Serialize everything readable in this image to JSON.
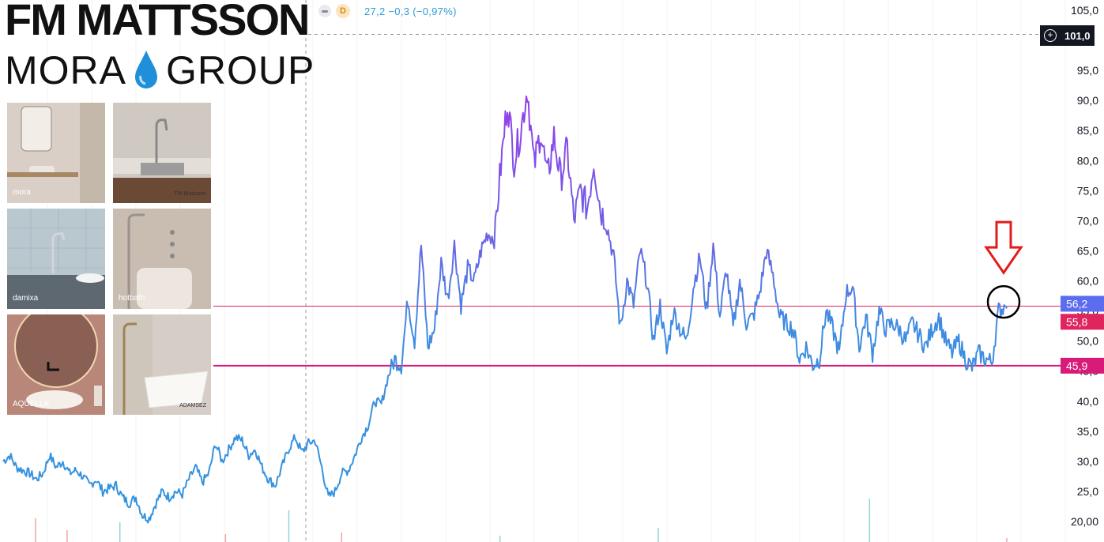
{
  "logo": {
    "line1": "FM MATTSSON",
    "line2_left": "MORA",
    "line2_right": "GROUP",
    "drop_icon": "water-drop-icon",
    "drop_color": "#1e8fd8"
  },
  "brand_tiles": [
    {
      "label": "mora",
      "bg": "#d9cfc6"
    },
    {
      "label": "FM Mattsson",
      "bg": "#cfc9c2"
    },
    {
      "label": "damixa",
      "bg": "#b9c7cf"
    },
    {
      "label": "hotbath",
      "bg": "#c9bdb2"
    },
    {
      "label": "AQUELLA",
      "bg": "#b9877a"
    },
    {
      "label": "ADAMSEZ",
      "bg": "#d6cec6"
    }
  ],
  "header": {
    "interval_badge": "D",
    "quote": "27,2  −0,3 (−0,97%)",
    "quote_color": "#2f9bd6"
  },
  "crosshair": {
    "price_label": "101,0"
  },
  "chart_data": {
    "type": "line",
    "ylim": [
      17.5,
      106.0
    ],
    "y_ticks": [
      "20,00",
      "25,0",
      "30,0",
      "35,0",
      "40,0",
      "45,0",
      "50,0",
      "55,0",
      "60,0",
      "65,0",
      "70,0",
      "75,0",
      "80,0",
      "85,0",
      "90,0",
      "95,0",
      "105,0"
    ],
    "y_tick_values": [
      20,
      25,
      30,
      35,
      40,
      45,
      50,
      55,
      60,
      65,
      70,
      75,
      80,
      85,
      90,
      95,
      105
    ],
    "series": [
      {
        "values": [
          30,
          31,
          29,
          28.5,
          28,
          27,
          28,
          31,
          29,
          30,
          28,
          28.5,
          27.5,
          26,
          27,
          25,
          25.5,
          26,
          24,
          23,
          24,
          21,
          20.5,
          23,
          25,
          24,
          25,
          24.5,
          27,
          29,
          26.5,
          28,
          33,
          30,
          32,
          34,
          33.5,
          31,
          32,
          29,
          27,
          26,
          29,
          32,
          34,
          31.5,
          33,
          33.5,
          29,
          24,
          25,
          28,
          28.5,
          31,
          34,
          36,
          40,
          39.5,
          44,
          47,
          46,
          57,
          50,
          66,
          49,
          52,
          63,
          57,
          66,
          56,
          62,
          60,
          65,
          68,
          67,
          79,
          90,
          80,
          85,
          92,
          79,
          85,
          77,
          84,
          77,
          82,
          70,
          75,
          72,
          80,
          72,
          69,
          64,
          52,
          60,
          56,
          65,
          60,
          50,
          56,
          48,
          55,
          52,
          50,
          59,
          64,
          55,
          66,
          54,
          62,
          52,
          60,
          53,
          54,
          58,
          65,
          61,
          54,
          53,
          52,
          47,
          49,
          46,
          47,
          55,
          52,
          48,
          58,
          59,
          49,
          54,
          48,
          55,
          52,
          53,
          52,
          50,
          53,
          51,
          49,
          52,
          54,
          50,
          48,
          50,
          47,
          45.5,
          48,
          47,
          46.5,
          55,
          55.8
        ]
      }
    ],
    "volume": [
      {
        "x": 0.03,
        "v": 0.3,
        "up": false
      },
      {
        "x": 0.06,
        "v": 0.15,
        "up": false
      },
      {
        "x": 0.11,
        "v": 0.25,
        "up": true
      },
      {
        "x": 0.21,
        "v": 0.1,
        "up": false
      },
      {
        "x": 0.27,
        "v": 0.4,
        "up": true
      },
      {
        "x": 0.32,
        "v": 0.12,
        "up": false
      },
      {
        "x": 0.47,
        "v": 0.08,
        "up": true
      },
      {
        "x": 0.62,
        "v": 0.18,
        "up": true
      },
      {
        "x": 0.82,
        "v": 0.55,
        "up": true
      },
      {
        "x": 0.95,
        "v": 0.05,
        "up": false
      }
    ],
    "horizontal_lines": [
      {
        "value": 55.8,
        "label": "55,8",
        "color": "#e0245e",
        "width": 1
      },
      {
        "value": 45.9,
        "label": "45,9",
        "color": "#d81b78",
        "width": 2
      }
    ],
    "last_price_label": {
      "value": 56.2,
      "label": "56,2",
      "color": "#5b6cf0"
    },
    "crosshair_value": 101.0,
    "gradient_colors": [
      "#2f95dd",
      "#6b63e6",
      "#a432e8"
    ],
    "annotations": {
      "arrow_color": "#e31b1b",
      "circle_color": "#000000"
    }
  }
}
